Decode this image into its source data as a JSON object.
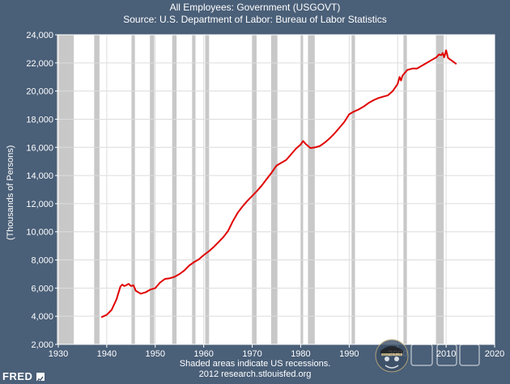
{
  "header": {
    "title": "All Employees: Government (USGOVT)",
    "source": "Source: U.S. Department of Labor: Bureau of Labor Statistics"
  },
  "footer": {
    "note": "Shaded areas indicate US recessions.",
    "credit": "2012 research.stlouisfed.org"
  },
  "brand": {
    "logo_text": "FRED"
  },
  "colors": {
    "background": "#4a5f78",
    "plot_bg": "#ffffff",
    "series": "#e00000",
    "recession": "#c8c8c8",
    "axis": "#ffffff"
  },
  "chart_data": {
    "type": "line",
    "title": "All Employees: Government (USGOVT)",
    "subtitle": "Source: U.S. Department of Labor: Bureau of Labor Statistics",
    "xlabel": "",
    "ylabel": "(Thousands of Persons)",
    "xlim": [
      1930,
      2020
    ],
    "ylim": [
      2000,
      24000
    ],
    "x_ticks": [
      1930,
      1940,
      1950,
      1960,
      1970,
      1980,
      1990,
      2000,
      2010,
      2020
    ],
    "y_ticks": [
      2000,
      4000,
      6000,
      8000,
      10000,
      12000,
      14000,
      16000,
      18000,
      20000,
      22000,
      24000
    ],
    "x_tick_labels": [
      "1930",
      "1940",
      "1950",
      "1960",
      "1970",
      "1980",
      "1990",
      "2000",
      "2010",
      "2020"
    ],
    "y_tick_labels": [
      "2,000",
      "4,000",
      "6,000",
      "8,000",
      "10,000",
      "12,000",
      "14,000",
      "16,000",
      "18,000",
      "20,000",
      "22,000",
      "24,000"
    ],
    "grid": true,
    "recessions": [
      [
        1929.7,
        1933.2
      ],
      [
        1937.4,
        1938.5
      ],
      [
        1945.1,
        1945.8
      ],
      [
        1948.9,
        1949.8
      ],
      [
        1953.5,
        1954.4
      ],
      [
        1957.6,
        1958.3
      ],
      [
        1960.3,
        1961.1
      ],
      [
        1969.9,
        1970.9
      ],
      [
        1973.9,
        1975.2
      ],
      [
        1980.0,
        1980.5
      ],
      [
        1981.5,
        1982.9
      ],
      [
        1990.5,
        1991.2
      ],
      [
        2001.2,
        2001.9
      ],
      [
        2007.9,
        2009.5
      ]
    ],
    "series": [
      {
        "x": [
          1939,
          1940,
          1941,
          1942,
          1942.8,
          1943.2,
          1943.6,
          1944,
          1944.5,
          1945,
          1945.5,
          1946,
          1947,
          1948,
          1949,
          1950,
          1951,
          1952,
          1953,
          1954,
          1955,
          1956,
          1957,
          1958,
          1959,
          1960,
          1961,
          1962,
          1963,
          1964,
          1965,
          1966,
          1967,
          1968,
          1969,
          1970,
          1971,
          1972,
          1973,
          1974,
          1975,
          1976,
          1977,
          1978,
          1979,
          1980,
          1980.5,
          1981,
          1982,
          1983,
          1984,
          1985,
          1986,
          1987,
          1988,
          1989,
          1990,
          1991,
          1992,
          1993,
          1994,
          1995,
          1996,
          1997,
          1998,
          1999,
          2000,
          2000.4,
          2000.7,
          2001,
          2002,
          2003,
          2004,
          2005,
          2006,
          2007,
          2008,
          2008.5,
          2009,
          2009.3,
          2009.6,
          2010,
          2010.4,
          2011,
          2012
        ],
        "y": [
          3950,
          4100,
          4450,
          5200,
          6100,
          6250,
          6150,
          6200,
          6300,
          6150,
          6200,
          5800,
          5600,
          5700,
          5900,
          6000,
          6400,
          6650,
          6700,
          6800,
          7000,
          7250,
          7600,
          7850,
          8050,
          8350,
          8600,
          8900,
          9250,
          9600,
          10050,
          10750,
          11350,
          11800,
          12200,
          12550,
          12900,
          13300,
          13750,
          14200,
          14700,
          14900,
          15100,
          15500,
          15900,
          16200,
          16450,
          16250,
          15950,
          16000,
          16100,
          16350,
          16650,
          17000,
          17400,
          17800,
          18350,
          18550,
          18700,
          18900,
          19150,
          19350,
          19500,
          19600,
          19700,
          20000,
          20500,
          21000,
          20750,
          21100,
          21500,
          21600,
          21600,
          21800,
          22000,
          22200,
          22400,
          22600,
          22550,
          22700,
          22400,
          22900,
          22350,
          22200,
          21950
        ]
      }
    ]
  }
}
